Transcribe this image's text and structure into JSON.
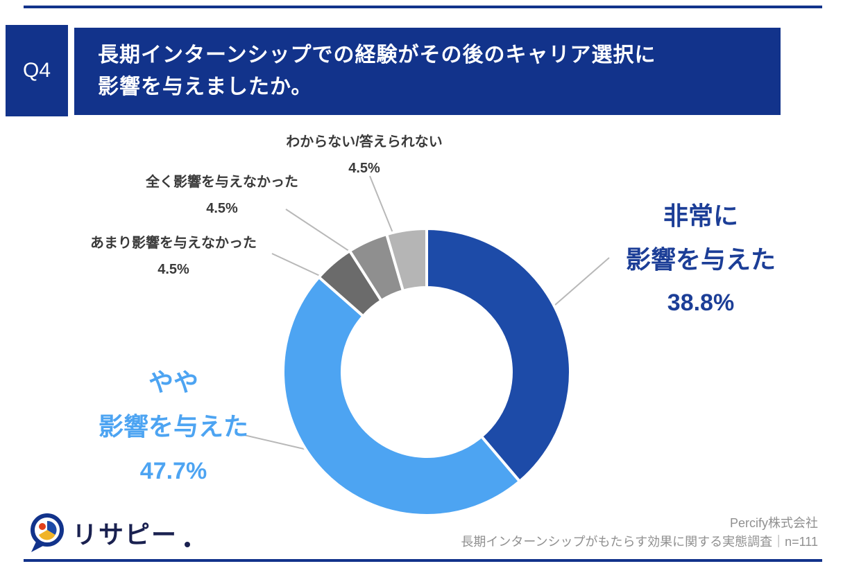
{
  "header": {
    "q_label": "Q4",
    "title_line1": "長期インターンシップでの経験がその後のキャリア選択に",
    "title_line2": "影響を与えましたか。"
  },
  "chart_data": {
    "type": "pie",
    "donut": true,
    "title": "長期インターンシップでの経験がその後のキャリア選択に影響を与えましたか。",
    "unit": "%",
    "start_angle_deg": -90,
    "direction": "clockwise",
    "inner_radius_ratio": 0.59,
    "segments": [
      {
        "label": "非常に影響を与えた",
        "value": 38.8,
        "color": "#1d4ba8"
      },
      {
        "label": "やや影響を与えた",
        "value": 47.7,
        "color": "#4da4f2"
      },
      {
        "label": "あまり影響を与えなかった",
        "value": 4.5,
        "color": "#6b6b6b"
      },
      {
        "label": "全く影響を与えなかった",
        "value": 4.5,
        "color": "#8f8f8f"
      },
      {
        "label": "わからない/答えられない",
        "value": 4.5,
        "color": "#b5b5b5"
      }
    ]
  },
  "labels": {
    "right": {
      "line1": "非常に",
      "line2": "影響を与えた",
      "pct": "38.8%"
    },
    "left": {
      "line1": "やや",
      "line2": "影響を与えた",
      "pct": "47.7%"
    },
    "unknown": {
      "text": "わからない/答えられない",
      "pct": "4.5%"
    },
    "none": {
      "text": "全く影響を与えなかった",
      "pct": "4.5%"
    },
    "little": {
      "text": "あまり影響を与えなかった",
      "pct": "4.5%"
    }
  },
  "footer": {
    "logo_text": "リサピー",
    "company": "Percify株式会社",
    "source": "長期インターンシップがもたらす効果に関する実態調査｜n=111"
  }
}
